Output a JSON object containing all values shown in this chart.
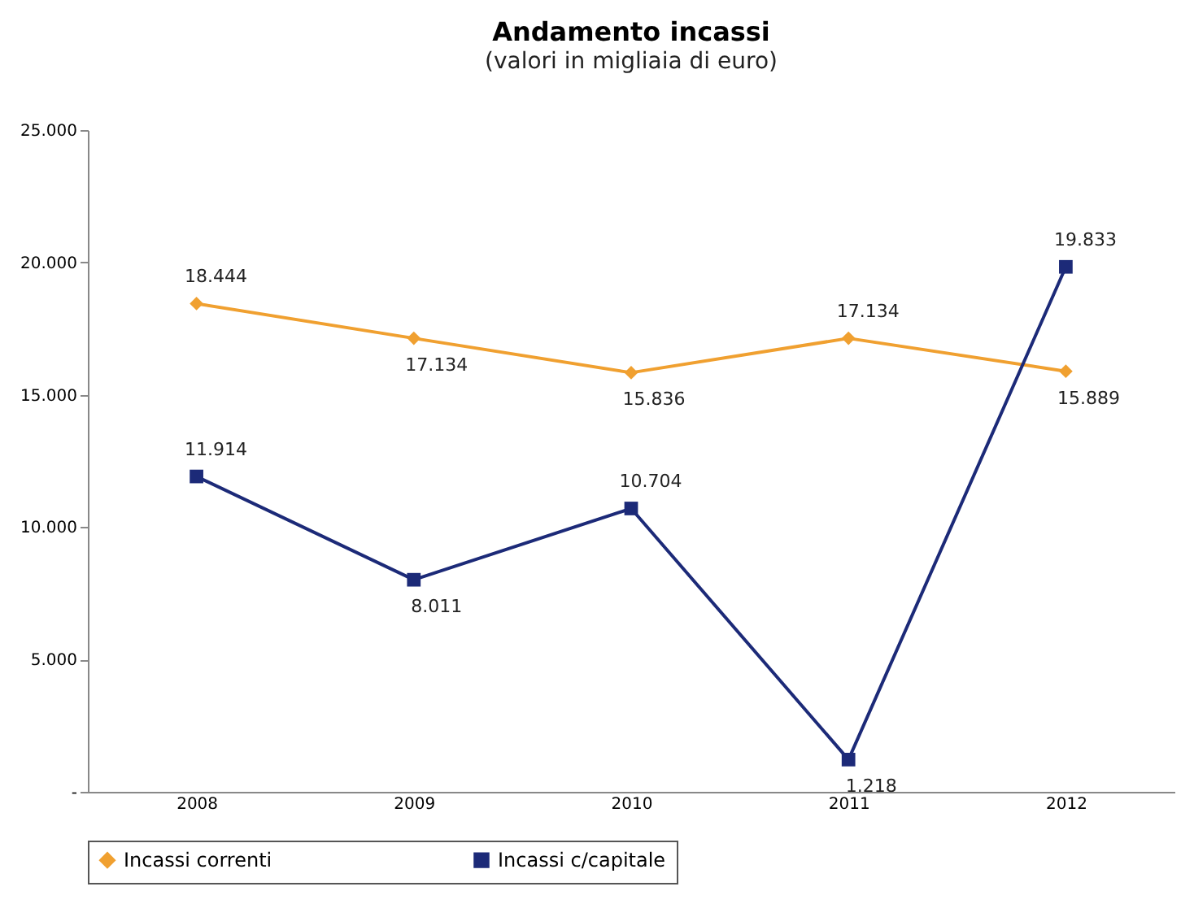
{
  "chart_data": {
    "type": "line",
    "title": "Andamento incassi",
    "subtitle": "(valori in migliaia di euro)",
    "categories": [
      "2008",
      "2009",
      "2010",
      "2011",
      "2012"
    ],
    "series": [
      {
        "name": "Incassi correnti",
        "color": "#f0a030",
        "marker": "diamond",
        "values": [
          18444,
          17134,
          15836,
          17134,
          15889
        ],
        "value_labels": [
          "18.444",
          "17.134",
          "15.836",
          "17.134",
          "15.889"
        ]
      },
      {
        "name": "Incassi c/capitale",
        "color": "#1c2a78",
        "marker": "square",
        "values": [
          11914,
          8011,
          10704,
          1218,
          19833
        ],
        "value_labels": [
          "11.914",
          "8.011",
          "10.704",
          "1.218",
          "19.833"
        ]
      }
    ],
    "ylim": [
      0,
      25000
    ],
    "yticks": [
      {
        "value": 0,
        "label": "-"
      },
      {
        "value": 5000,
        "label": "5.000"
      },
      {
        "value": 10000,
        "label": "10.000"
      },
      {
        "value": 15000,
        "label": "15.000"
      },
      {
        "value": 20000,
        "label": "20.000"
      },
      {
        "value": 25000,
        "label": "25.000"
      }
    ],
    "grid": false,
    "legend": "bottom",
    "line_style": "solid"
  }
}
